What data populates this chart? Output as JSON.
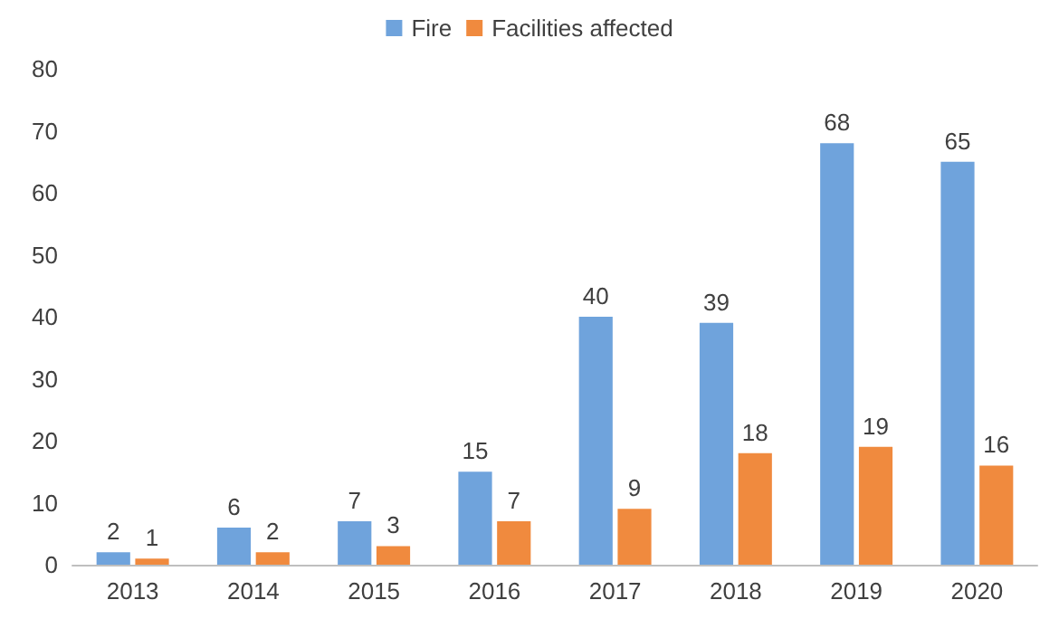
{
  "chart_data": {
    "type": "bar",
    "categories": [
      "2013",
      "2014",
      "2015",
      "2016",
      "2017",
      "2018",
      "2019",
      "2020"
    ],
    "series": [
      {
        "name": "Fire",
        "color": "#6fa3dc",
        "values": [
          2,
          6,
          7,
          15,
          40,
          39,
          68,
          65
        ]
      },
      {
        "name": "Facilities affected",
        "color": "#f08a3e",
        "values": [
          1,
          2,
          3,
          7,
          9,
          18,
          19,
          16
        ]
      }
    ],
    "ylim": [
      0,
      80
    ],
    "yticks": [
      0,
      10,
      20,
      30,
      40,
      50,
      60,
      70,
      80
    ],
    "grid": false,
    "legend": "top",
    "data_labels": true
  }
}
